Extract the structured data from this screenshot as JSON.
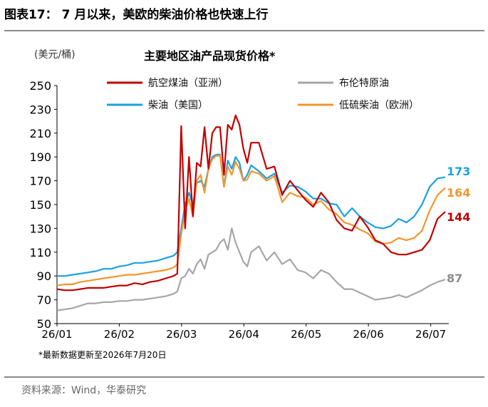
{
  "header": {
    "figure_title": "图表17：  7 月以来，美欧的柴油价格也快速上行"
  },
  "chart_data": {
    "type": "line",
    "title": "主要地区油产品现货价格*",
    "ylabel": "(美元/桶)",
    "xlabel": "",
    "ylim": [
      50,
      250
    ],
    "yticks": [
      50,
      70,
      90,
      110,
      130,
      150,
      170,
      190,
      210,
      230,
      250
    ],
    "xticks": [
      "26/01",
      "26/02",
      "26/03",
      "26/04",
      "26/05",
      "26/06",
      "26/07"
    ],
    "grid": false,
    "legend_position": "top",
    "x": [
      0,
      4,
      8,
      12,
      16,
      20,
      24,
      28,
      32,
      36,
      40,
      44,
      48,
      52,
      56,
      60,
      62,
      64,
      66,
      68,
      70,
      72,
      74,
      76,
      78,
      80,
      82,
      84,
      86,
      88,
      90,
      92,
      94,
      96,
      98,
      100,
      104,
      108,
      112,
      116,
      120,
      124,
      128,
      132,
      136,
      140,
      144,
      148,
      152,
      156,
      160,
      164,
      168,
      172,
      176,
      180,
      184,
      188,
      192,
      196,
      200
    ],
    "series": [
      {
        "name": "航空煤油（亚洲）",
        "color": "#c00000",
        "values": [
          79,
          78,
          78,
          79,
          80,
          80,
          80,
          81,
          82,
          82,
          84,
          83,
          85,
          86,
          88,
          90,
          92,
          216,
          130,
          190,
          140,
          185,
          182,
          215,
          180,
          210,
          215,
          215,
          175,
          217,
          213,
          225,
          217,
          197,
          185,
          202,
          202,
          180,
          182,
          158,
          170,
          162,
          154,
          148,
          160,
          152,
          137,
          130,
          128,
          140,
          131,
          120,
          117,
          110,
          108,
          108,
          110,
          112,
          120,
          138,
          144
        ],
        "end_label": "144"
      },
      {
        "name": "布伦特原油",
        "color": "#a6a6a6",
        "values": [
          61,
          62,
          63,
          65,
          67,
          67,
          68,
          68,
          69,
          69,
          70,
          70,
          71,
          72,
          73,
          75,
          77,
          88,
          90,
          96,
          92,
          100,
          104,
          96,
          108,
          110,
          112,
          118,
          121,
          112,
          130,
          118,
          110,
          102,
          98,
          110,
          115,
          103,
          110,
          100,
          104,
          95,
          93,
          88,
          95,
          92,
          85,
          79,
          79,
          76,
          73,
          70,
          71,
          72,
          74,
          72,
          75,
          78,
          82,
          85,
          87
        ],
        "end_label": "87"
      },
      {
        "name": "柴油（美国）",
        "color": "#1ba1e2",
        "values": [
          90,
          90,
          91,
          92,
          93,
          94,
          96,
          96,
          98,
          99,
          101,
          101,
          102,
          103,
          105,
          107,
          110,
          130,
          150,
          160,
          150,
          168,
          170,
          165,
          180,
          190,
          192,
          192,
          165,
          187,
          180,
          190,
          185,
          170,
          175,
          183,
          178,
          172,
          176,
          160,
          166,
          165,
          161,
          155,
          155,
          151,
          150,
          140,
          147,
          140,
          135,
          131,
          130,
          132,
          138,
          135,
          140,
          150,
          165,
          172,
          173
        ],
        "end_label": "173"
      },
      {
        "name": "低硫柴油（欧洲）",
        "color": "#f4952d",
        "values": [
          82,
          83,
          83,
          85,
          86,
          87,
          88,
          89,
          90,
          91,
          91,
          92,
          93,
          94,
          95,
          97,
          100,
          125,
          145,
          155,
          140,
          170,
          175,
          160,
          180,
          188,
          191,
          191,
          165,
          182,
          175,
          186,
          180,
          170,
          171,
          178,
          176,
          170,
          174,
          152,
          160,
          157,
          156,
          150,
          153,
          146,
          142,
          135,
          133,
          129,
          126,
          119,
          117,
          118,
          122,
          120,
          122,
          128,
          145,
          158,
          164
        ],
        "end_label": "164"
      }
    ]
  },
  "footnote": "*最新数据更新至2026年7月20日",
  "source": "资料来源：Wind，华泰研究"
}
